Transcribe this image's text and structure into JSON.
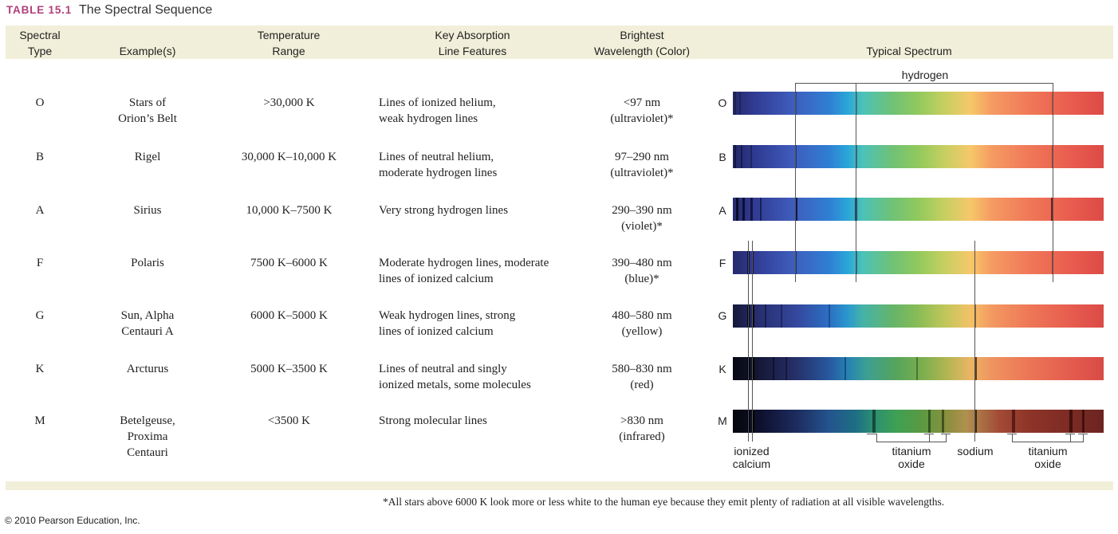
{
  "table": {
    "number": "TABLE 15.1",
    "title": "The Spectral Sequence"
  },
  "headers": {
    "type": "Spectral\nType",
    "examples": "Example(s)",
    "temperature": "Temperature\nRange",
    "lines": "Key Absorption\nLine Features",
    "wavelength": "Brightest\nWavelength (Color)",
    "spectrum": "Typical Spectrum"
  },
  "rows": [
    {
      "type": "O",
      "examples": "Stars of\nOrion’s Belt",
      "temperature": ">30,000 K",
      "lines": "Lines of ionized helium,\nweak hydrogen lines",
      "wavelength": "<97 nm\n(ultraviolet)*"
    },
    {
      "type": "B",
      "examples": "Rigel",
      "temperature": "30,000 K–10,000 K",
      "lines": "Lines of neutral helium,\nmoderate hydrogen lines",
      "wavelength": "97–290 nm\n(ultraviolet)*"
    },
    {
      "type": "A",
      "examples": "Sirius",
      "temperature": "10,000 K–7500 K",
      "lines": "Very strong hydrogen lines",
      "wavelength": "290–390 nm\n(violet)*"
    },
    {
      "type": "F",
      "examples": "Polaris",
      "temperature": "7500 K–6000 K",
      "lines": "Moderate hydrogen lines, moderate\nlines of ionized calcium",
      "wavelength": "390–480 nm\n(blue)*"
    },
    {
      "type": "G",
      "examples": "Sun, Alpha\nCentauri A",
      "temperature": "6000 K–5000 K",
      "lines": "Weak hydrogen lines, strong\nlines of ionized calcium",
      "wavelength": "480–580 nm\n(yellow)"
    },
    {
      "type": "K",
      "examples": "Arcturus",
      "temperature": "5000 K–3500 K",
      "lines": "Lines of neutral and singly\nionized metals, some molecules",
      "wavelength": "580–830 nm\n(red)"
    },
    {
      "type": "M",
      "examples": "Betelgeuse,\nProxima\nCentauri",
      "temperature": "<3500 K",
      "lines": "Strong molecular lines",
      "wavelength": ">830 nm\n(infrared)"
    }
  ],
  "spectrum_labels": {
    "hydrogen": "hydrogen",
    "ionized_calcium": "ionized\ncalcium",
    "titanium_oxide_1": "titanium\noxide",
    "sodium": "sodium",
    "titanium_oxide_2": "titanium\noxide"
  },
  "footnote": "*All stars above 6000 K look more or less white to the human eye because they emit plenty of radiation at all visible wavelengths.",
  "copyright": "© 2010 Pearson Education, Inc.",
  "colors": {
    "accent": "#b0407a",
    "band": "#f1efd9"
  }
}
